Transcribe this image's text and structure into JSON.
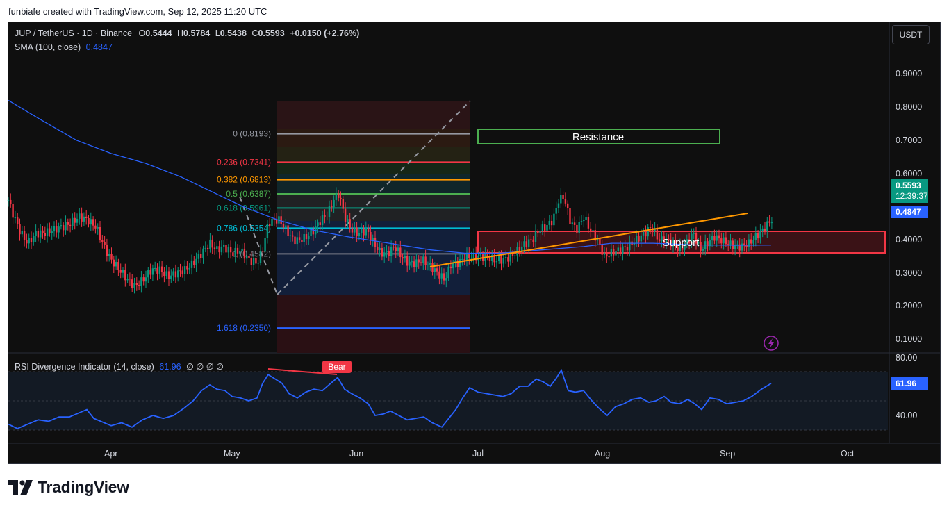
{
  "credit": "funbiafe created with TradingView.com, Sep 12, 2025 11:20 UTC",
  "legend": {
    "symbol": "JUP / TetherUS · 1D · Binance",
    "open_label": "O",
    "open": "0.5444",
    "high_label": "H",
    "high": "0.5784",
    "low_label": "L",
    "low": "0.5438",
    "close_label": "C",
    "close": "0.5593",
    "change": "+0.0150 (+2.76%)",
    "sma_label": "SMA (100, close)",
    "sma_value": "0.4847",
    "rsi_label": "RSI Divergence Indicator (14, close)",
    "rsi_value": "61.96",
    "rsi_extra": "∅ ∅ ∅ ∅"
  },
  "currency_button": "USDT",
  "price_axis": [
    "0.9000",
    "0.8000",
    "0.7000",
    "0.6000",
    "0.4000",
    "0.3000",
    "0.2000",
    "0.1000"
  ],
  "price_tags": {
    "last_price": "0.5593",
    "countdown": "12:39:37",
    "sma": "0.4847",
    "rsi": "61.96"
  },
  "rsi_axis": [
    "80.00",
    "40.00"
  ],
  "time_axis": [
    "Apr",
    "May",
    "Jun",
    "Jul",
    "Aug",
    "Sep",
    "Oct"
  ],
  "fib_levels": [
    {
      "label": "0 (0.8193)",
      "price": 0.8193,
      "color": "#9598a1"
    },
    {
      "label": "0.236 (0.7341)",
      "price": 0.7341,
      "color": "#f23645"
    },
    {
      "label": "0.382 (0.6813)",
      "price": 0.6813,
      "color": "#ff9800"
    },
    {
      "label": "0.5 (0.6387)",
      "price": 0.6387,
      "color": "#4caf50"
    },
    {
      "label": "0.618 (0.5961)",
      "price": 0.5961,
      "color": "#089981"
    },
    {
      "label": "0.786 (0.5354)",
      "price": 0.5354,
      "color": "#00bcd4"
    },
    {
      "label": "1 (0.4582)",
      "price": 0.4582,
      "color": "#787b86"
    },
    {
      "label": "1.618 (0.2350)",
      "price": 0.235,
      "color": "#2962ff"
    }
  ],
  "annotations": {
    "resistance": "Resistance",
    "support": "Support",
    "bear": "Bear"
  },
  "colors": {
    "up": "#089981",
    "down": "#f23645",
    "sma": "#2962ff",
    "rsi": "#2962ff",
    "trendline": "#ff9800",
    "resistance_box": "#4caf50",
    "support_box": "#f23645"
  },
  "brand": "TradingView"
}
